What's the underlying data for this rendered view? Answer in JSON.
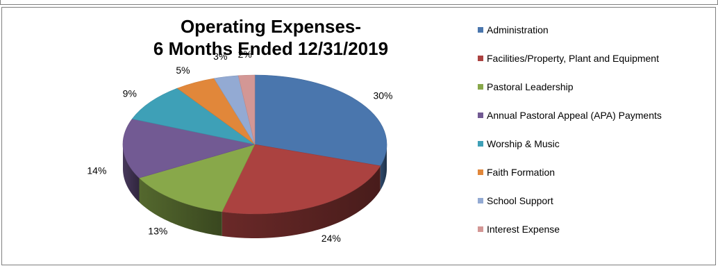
{
  "chart_data": {
    "type": "pie",
    "title": "Operating Expenses-\n6 Months Ended 12/31/2019",
    "title_lines": [
      "Operating Expenses-",
      "6 Months Ended 12/31/2019"
    ],
    "categories": [
      "Administration",
      "Facilities/Property, Plant and Equipment",
      "Pastoral Leadership",
      "Annual Pastoral Appeal (APA) Payments",
      "Worship & Music",
      "Faith Formation",
      "School Support",
      "Interest Expense"
    ],
    "values": [
      30,
      24,
      13,
      14,
      9,
      5,
      3,
      2
    ],
    "data_labels": [
      "30%",
      "24%",
      "13%",
      "14%",
      "9%",
      "5%",
      "3%",
      "2%"
    ],
    "colors": [
      "#4a76ad",
      "#ab4240",
      "#88a84a",
      "#725a93",
      "#3ea0b7",
      "#e1873a",
      "#93aad3",
      "#d39795"
    ],
    "legend_position": "right",
    "style": "3d-pie"
  }
}
